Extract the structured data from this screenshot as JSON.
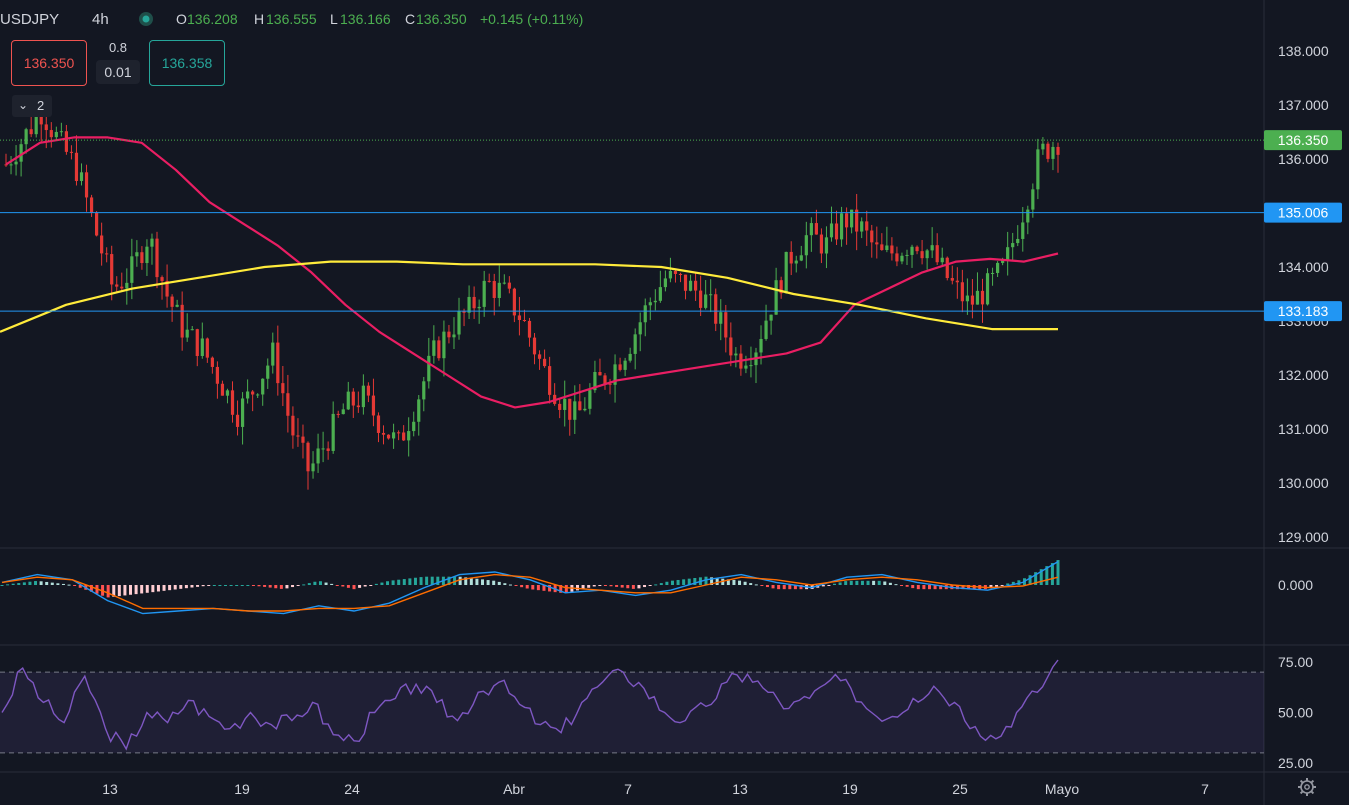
{
  "header": {
    "symbol": "USDJPY",
    "interval": "4h",
    "open_label": "O",
    "open": "136.208",
    "high_label": "H",
    "high": "136.555",
    "low_label": "L",
    "low": "136.166",
    "close_label": "C",
    "close": "136.350",
    "change": "+0.145 (+0.11%)"
  },
  "trade": {
    "sell": "136.350",
    "spread": "0.8",
    "lot": "0.01",
    "buy": "136.358"
  },
  "indicators_toggle": {
    "count": "2"
  },
  "colors": {
    "background": "#131722",
    "up": "#26a69a",
    "down": "#ef5350",
    "candle_up": "#4caf50",
    "candle_down": "#e53935",
    "ma_fast": "#e91e63",
    "ma_slow": "#ffeb3b",
    "macd": "#2196f3",
    "signal": "#ff6d00",
    "rsi": "#7e57c2",
    "hline": "#2196f3",
    "last_price": "#4caf50"
  },
  "chart_data": [
    {
      "type": "candlestick",
      "title": "USDJPY 4h",
      "ylim": [
        128.75,
        138.6
      ],
      "y_ticks": [
        "138.000",
        "137.000",
        "136.000",
        "134.000",
        "133.000",
        "132.000",
        "131.000",
        "130.000",
        "129.000"
      ],
      "x_ticks": [
        "13",
        "19",
        "24",
        "Abr",
        "7",
        "13",
        "19",
        "25",
        "Mayo",
        "7"
      ],
      "last_price": "136.350",
      "price_lines": [
        {
          "label": "135.006",
          "value": 135.006
        },
        {
          "label": "133.183",
          "value": 133.183
        }
      ],
      "moving_averages": [
        {
          "color": "ma_fast",
          "values": [
            135.9,
            136.3,
            136.4,
            136.4,
            136.3,
            135.8,
            135.2,
            134.8,
            134.4,
            133.9,
            133.3,
            132.8,
            132.4,
            132.0,
            131.6,
            131.4,
            131.5,
            131.7,
            131.9,
            132.0,
            132.1,
            132.2,
            132.3,
            132.4,
            132.6,
            133.3,
            133.6,
            133.9,
            134.1,
            134.15,
            134.1,
            134.25
          ]
        },
        {
          "color": "ma_slow",
          "values": [
            132.8,
            133.3,
            133.6,
            133.8,
            134.0,
            134.1,
            134.1,
            134.05,
            134.05,
            134.05,
            134.0,
            133.8,
            133.5,
            133.3,
            133.05,
            132.85,
            132.85
          ]
        }
      ],
      "candles_summary": {
        "start_close": 135.9,
        "end_close": 136.35,
        "path": [
          135.9,
          136.4,
          136.9,
          136.3,
          135.8,
          134.7,
          133.6,
          133.9,
          134.6,
          133.5,
          132.8,
          132.5,
          131.9,
          131.3,
          131.8,
          132.4,
          131.0,
          130.2,
          130.8,
          131.4,
          131.6,
          131.1,
          130.7,
          131.5,
          132.4,
          132.9,
          133.2,
          133.7,
          133.5,
          133.0,
          132.2,
          131.6,
          131.2,
          131.8,
          132.1,
          132.6,
          133.3,
          133.8,
          133.7,
          133.5,
          133.0,
          132.3,
          132.5,
          133.4,
          134.2,
          134.6,
          134.4,
          134.9,
          134.7,
          134.2,
          134.3,
          134.5,
          134.2,
          133.7,
          133.3,
          133.6,
          134.0,
          135.0,
          136.1,
          136.35
        ]
      }
    },
    {
      "type": "macd",
      "y_ticks": [
        "0.000"
      ],
      "series": [
        {
          "color": "macd",
          "values": [
            0.05,
            0.2,
            0.1,
            -0.3,
            -0.55,
            -0.5,
            -0.45,
            -0.5,
            -0.55,
            -0.4,
            -0.5,
            -0.35,
            -0.05,
            0.2,
            0.25,
            0.1,
            -0.15,
            -0.1,
            -0.2,
            -0.1,
            0.1,
            0.2,
            0.05,
            -0.05,
            0.15,
            0.2,
            0.05,
            -0.05,
            -0.1,
            0.05,
            0.45
          ]
        },
        {
          "color": "signal",
          "values": [
            0.05,
            0.15,
            0.1,
            -0.15,
            -0.45,
            -0.45,
            -0.45,
            -0.5,
            -0.5,
            -0.45,
            -0.45,
            -0.4,
            -0.15,
            0.1,
            0.2,
            0.15,
            -0.05,
            -0.1,
            -0.15,
            -0.15,
            0.0,
            0.15,
            0.1,
            0.0,
            0.1,
            0.15,
            0.1,
            0.0,
            -0.05,
            -0.02,
            0.15
          ]
        }
      ]
    },
    {
      "type": "rsi",
      "y_ticks": [
        "75.00",
        "50.00",
        "25.00"
      ],
      "ylim": [
        22,
        82
      ],
      "bands": [
        70,
        30
      ],
      "values": [
        50,
        72,
        55,
        45,
        68,
        42,
        32,
        50,
        45,
        56,
        48,
        42,
        50,
        44,
        46,
        55,
        39,
        36,
        50,
        57,
        64,
        55,
        46,
        60,
        65,
        54,
        44,
        40,
        55,
        65,
        70,
        62,
        50,
        46,
        53,
        65,
        69,
        60,
        52,
        57,
        66,
        62,
        50,
        48,
        57,
        63,
        55,
        43,
        37,
        50,
        60,
        76
      ]
    }
  ]
}
